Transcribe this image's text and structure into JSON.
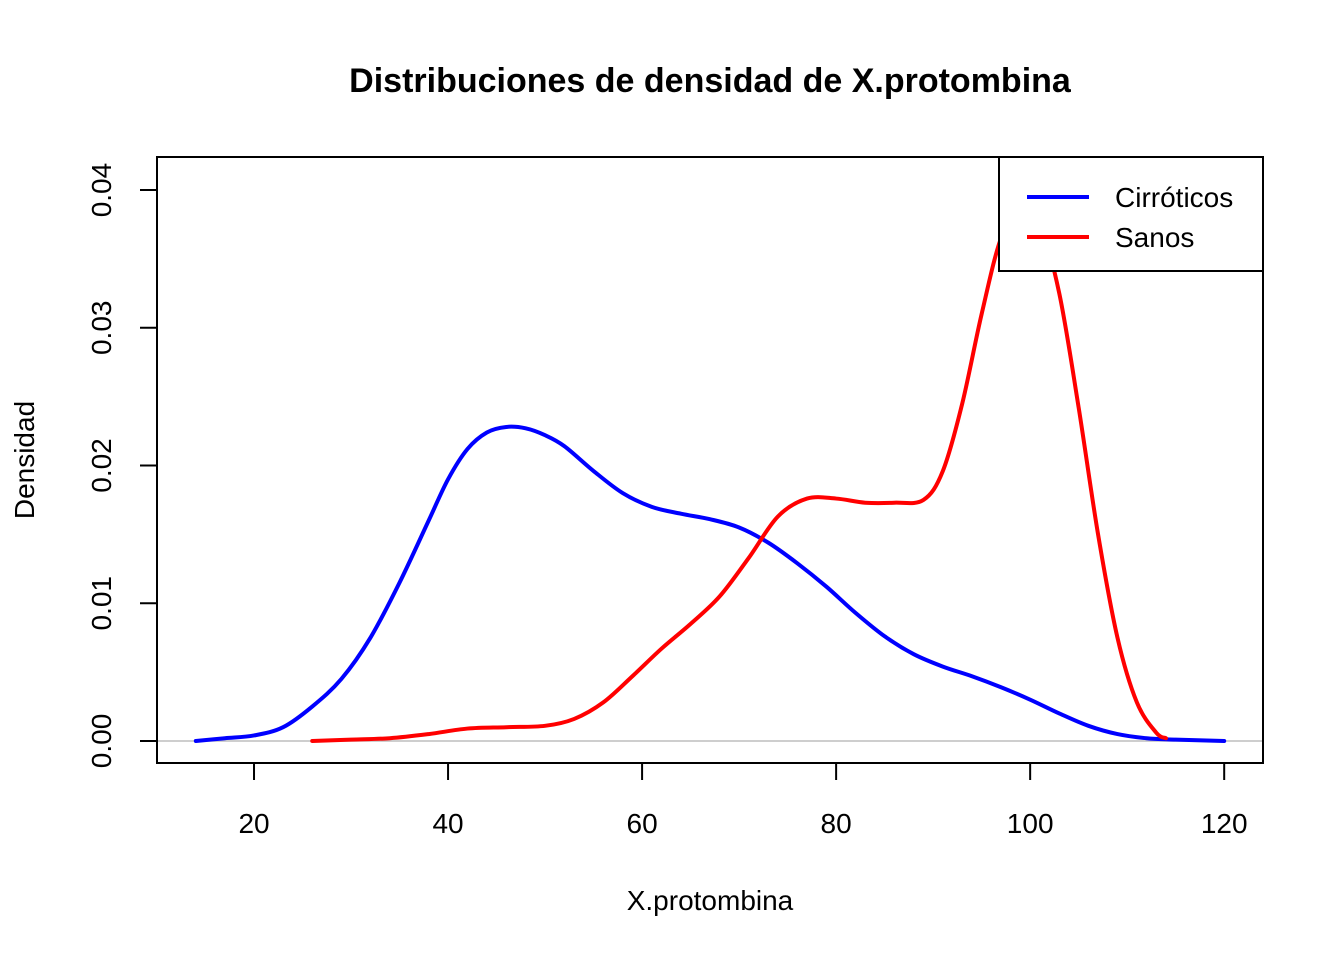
{
  "chart_data": {
    "type": "line",
    "title": "Distribuciones de densidad de X.protombina",
    "xlabel": "X.protombina",
    "ylabel": "Densidad",
    "xlim": [
      10,
      124
    ],
    "ylim": [
      -0.0016,
      0.0424
    ],
    "x_ticks": [
      20,
      40,
      60,
      80,
      100,
      120
    ],
    "x_tick_labels": [
      "20",
      "40",
      "60",
      "80",
      "100",
      "120"
    ],
    "y_ticks": [
      0.0,
      0.01,
      0.02,
      0.03,
      0.04
    ],
    "y_tick_labels": [
      "0.00",
      "0.01",
      "0.02",
      "0.03",
      "0.04"
    ],
    "baseline": {
      "y": 0,
      "color": "#bebebe"
    },
    "legend": {
      "position": "top-right"
    },
    "series": [
      {
        "name": "Cirróticos",
        "color": "#0000ff",
        "points": [
          [
            14,
            0.0
          ],
          [
            17,
            0.0002
          ],
          [
            20,
            0.0004
          ],
          [
            23,
            0.001
          ],
          [
            26,
            0.0025
          ],
          [
            29,
            0.0045
          ],
          [
            32,
            0.0075
          ],
          [
            35,
            0.0115
          ],
          [
            38,
            0.016
          ],
          [
            40,
            0.019
          ],
          [
            42,
            0.0212
          ],
          [
            44,
            0.0224
          ],
          [
            46,
            0.0228
          ],
          [
            48,
            0.0227
          ],
          [
            50,
            0.0222
          ],
          [
            52,
            0.0214
          ],
          [
            55,
            0.0196
          ],
          [
            58,
            0.018
          ],
          [
            61,
            0.017
          ],
          [
            64,
            0.0165
          ],
          [
            67,
            0.0161
          ],
          [
            70,
            0.0155
          ],
          [
            73,
            0.0144
          ],
          [
            76,
            0.0129
          ],
          [
            79,
            0.0112
          ],
          [
            82,
            0.0093
          ],
          [
            85,
            0.0076
          ],
          [
            88,
            0.0063
          ],
          [
            91,
            0.0054
          ],
          [
            94,
            0.0047
          ],
          [
            97,
            0.0039
          ],
          [
            100,
            0.003
          ],
          [
            103,
            0.002
          ],
          [
            106,
            0.0011
          ],
          [
            109,
            0.0005
          ],
          [
            112,
            0.0002
          ],
          [
            115,
            0.0001
          ],
          [
            120,
            0.0
          ]
        ]
      },
      {
        "name": "Sanos",
        "color": "#ff0000",
        "points": [
          [
            26,
            0.0
          ],
          [
            30,
            0.0001
          ],
          [
            34,
            0.0002
          ],
          [
            38,
            0.0005
          ],
          [
            42,
            0.0009
          ],
          [
            46,
            0.001
          ],
          [
            50,
            0.0011
          ],
          [
            53,
            0.0016
          ],
          [
            56,
            0.0028
          ],
          [
            59,
            0.0047
          ],
          [
            62,
            0.0067
          ],
          [
            65,
            0.0085
          ],
          [
            68,
            0.0105
          ],
          [
            71,
            0.0133
          ],
          [
            74,
            0.0163
          ],
          [
            77,
            0.0176
          ],
          [
            80,
            0.0176
          ],
          [
            83,
            0.0173
          ],
          [
            86,
            0.0173
          ],
          [
            89,
            0.0175
          ],
          [
            91,
            0.0196
          ],
          [
            93,
            0.0245
          ],
          [
            95,
            0.031
          ],
          [
            97,
            0.0365
          ],
          [
            99,
            0.0385
          ],
          [
            101,
            0.0375
          ],
          [
            103,
            0.0325
          ],
          [
            105,
            0.0242
          ],
          [
            107,
            0.015
          ],
          [
            109,
            0.0075
          ],
          [
            111,
            0.0028
          ],
          [
            113,
            0.0006
          ],
          [
            114,
            0.0002
          ]
        ]
      }
    ]
  }
}
